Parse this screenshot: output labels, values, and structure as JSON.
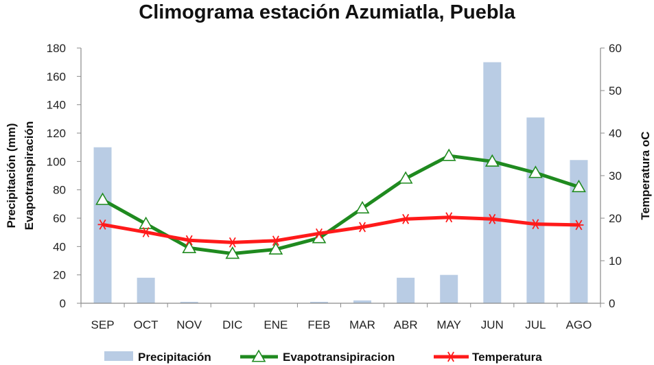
{
  "chart_data": {
    "type": "bar",
    "title": "Climograma estación Azumiatla, Puebla",
    "categories": [
      "SEP",
      "OCT",
      "NOV",
      "DIC",
      "ENE",
      "FEB",
      "MAR",
      "ABR",
      "MAY",
      "JUN",
      "JUL",
      "AGO"
    ],
    "ylabel_left_line1": "Precipitación (mm)",
    "ylabel_left_line2": "Evapotranspiración",
    "ylabel_right": "Temperatura oC",
    "ylim_left": [
      0,
      180
    ],
    "yticks_left": [
      0,
      20,
      40,
      60,
      80,
      100,
      120,
      140,
      160,
      180
    ],
    "ylim_right": [
      0,
      60
    ],
    "yticks_right": [
      0,
      10,
      20,
      30,
      40,
      50,
      60
    ],
    "grid": false,
    "legend_position": "bottom",
    "series": [
      {
        "name": "Precipitación",
        "type": "bar",
        "axis": "left",
        "color": "#b9cce4",
        "values": [
          110,
          18,
          1,
          0,
          0,
          1,
          2,
          18,
          20,
          170,
          131,
          101
        ]
      },
      {
        "name": "Evapotransipiracion",
        "type": "line",
        "axis": "left",
        "color": "#1f8a1f",
        "marker": "triangle",
        "values": [
          73,
          56,
          39,
          35,
          38,
          46,
          67,
          88,
          104,
          100,
          92,
          82
        ]
      },
      {
        "name": "Temperatura",
        "type": "line",
        "axis": "right",
        "color": "#ff1a1a",
        "marker": "asterisk",
        "values": [
          18.5,
          16.7,
          14.8,
          14.3,
          14.7,
          16.4,
          17.9,
          19.8,
          20.2,
          19.8,
          18.6,
          18.4
        ]
      }
    ]
  }
}
